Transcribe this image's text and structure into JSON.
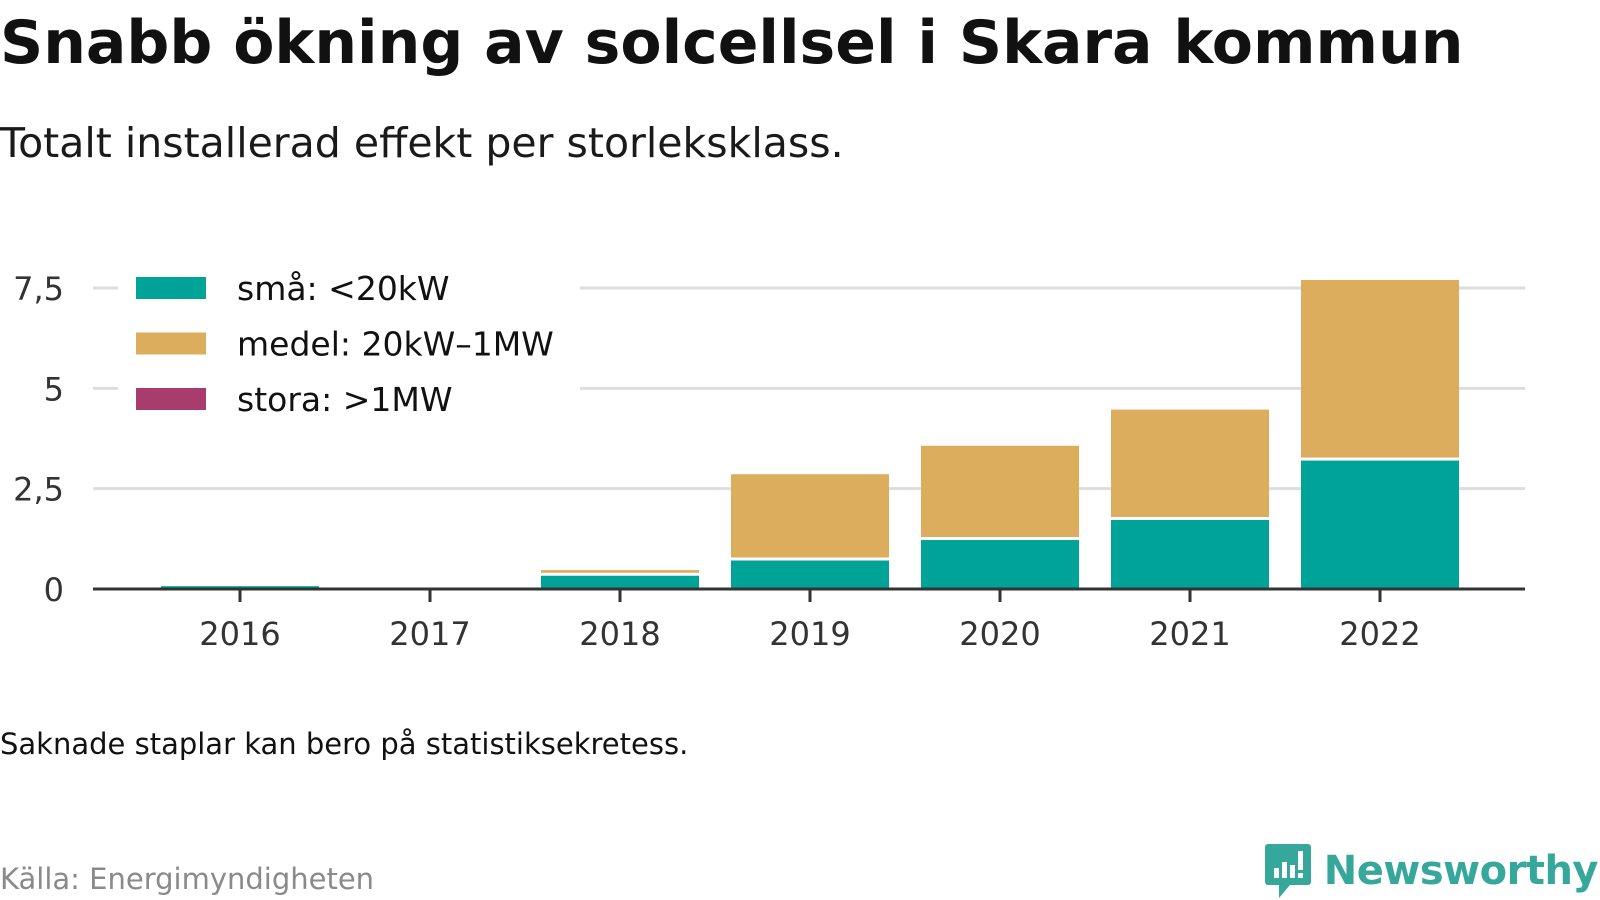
{
  "header": {
    "title": "Snabb ökning av solcellsel i Skara kommun",
    "subtitle": "Totalt installerad effekt per storleksklass."
  },
  "footer": {
    "note": "Saknade staplar kan bero på statistiksekretess.",
    "source": "Källa: Energimyndigheten",
    "brand": "Newsworthy",
    "brand_icon": "newsworthy-logo-icon"
  },
  "colors": {
    "small": "#00a398",
    "medium": "#dbad5c",
    "large": "#a83c6c",
    "grid": "#dddddd",
    "axis": "#333333",
    "brand": "#36a89b"
  },
  "chart_data": {
    "type": "bar",
    "stacked": true,
    "title": "Snabb ökning av solcellsel i Skara kommun",
    "subtitle": "Totalt installerad effekt per storleksklass.",
    "xlabel": "",
    "ylabel": "",
    "categories": [
      "2016",
      "2017",
      "2018",
      "2019",
      "2020",
      "2021",
      "2022"
    ],
    "series": [
      {
        "name": "små: <20kW",
        "color": "#00a398",
        "values": [
          0.07,
          0,
          0.33,
          0.71,
          1.22,
          1.72,
          3.2
        ]
      },
      {
        "name": "medel: 20kW–1MW",
        "color": "#dbad5c",
        "values": [
          0,
          0,
          0.14,
          2.15,
          2.35,
          2.75,
          4.5
        ]
      },
      {
        "name": "stora: >1MW",
        "color": "#a83c6c",
        "values": [
          0,
          0,
          0,
          0,
          0,
          0,
          0
        ]
      }
    ],
    "ylim": [
      0,
      7.5
    ],
    "yticks": [
      0,
      2.5,
      5,
      7.5
    ],
    "ytick_labels": [
      "0",
      "2,5",
      "5",
      "7,5"
    ],
    "grid": true,
    "legend_position": "top-left"
  }
}
